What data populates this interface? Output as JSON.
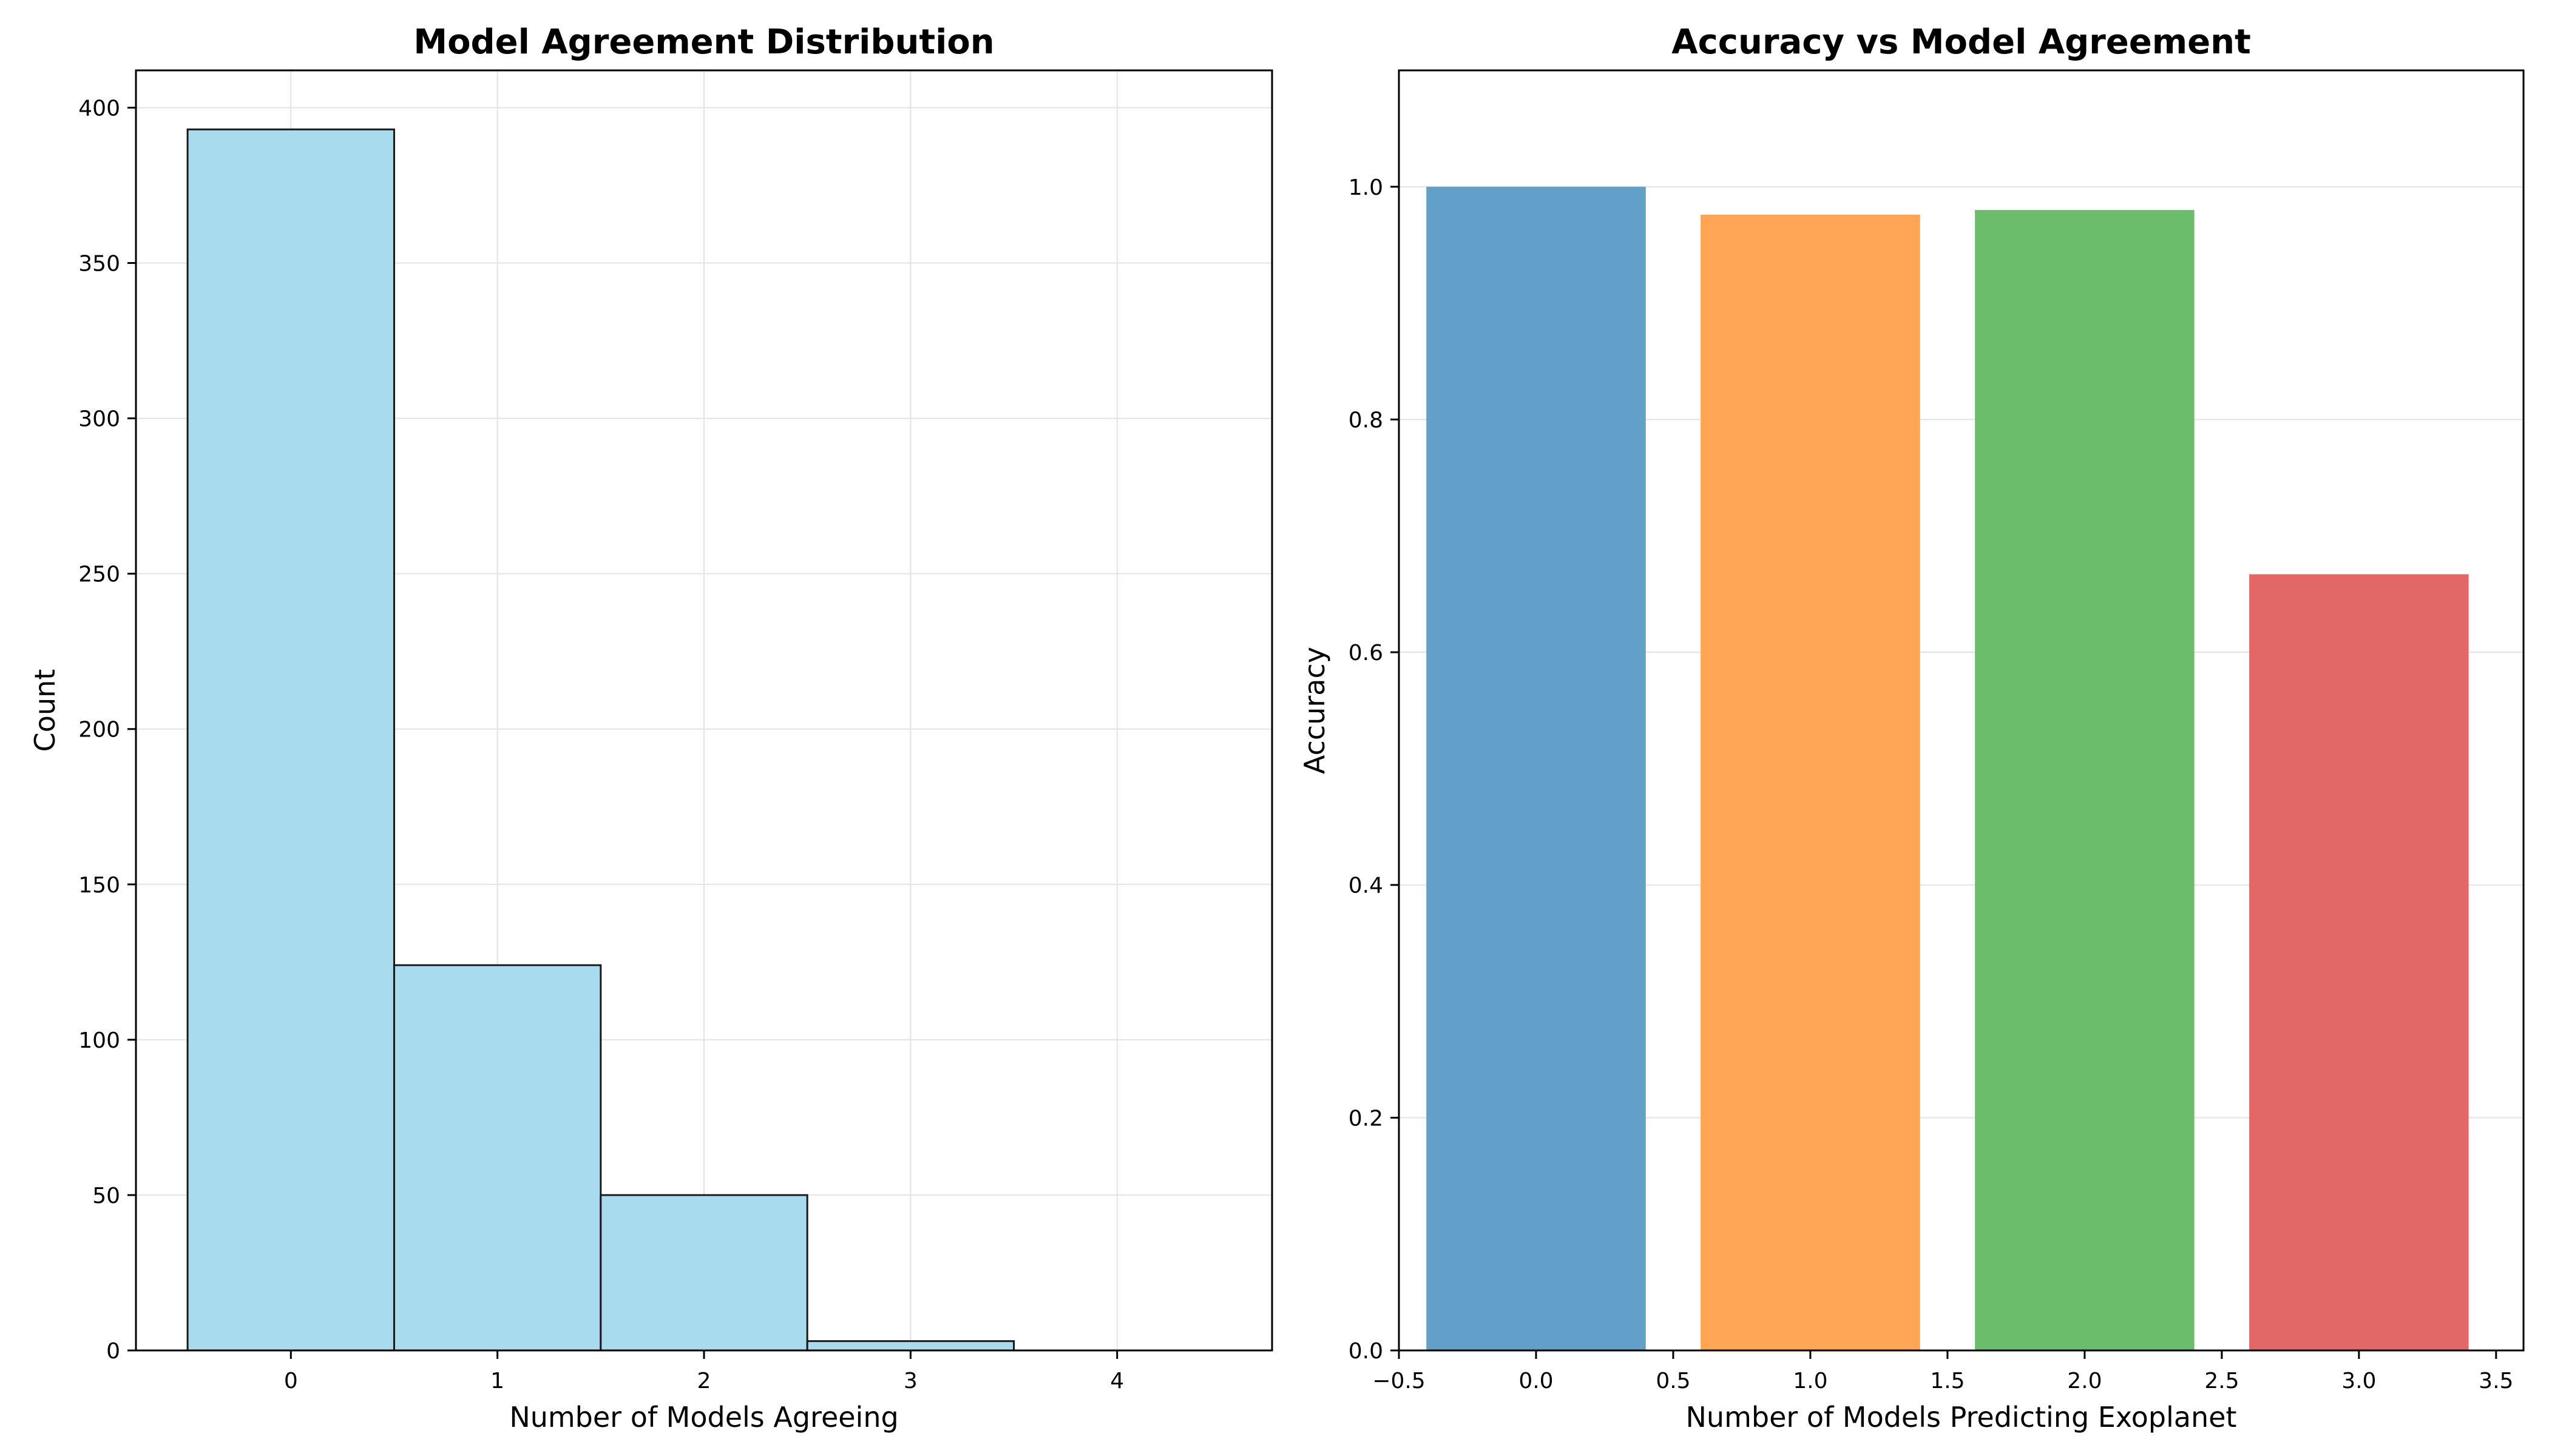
{
  "chart_data": [
    {
      "type": "bar",
      "title": "Model Agreement Distribution",
      "xlabel": "Number of Models Agreeing",
      "ylabel": "Count",
      "categories": [
        0,
        1,
        2,
        3,
        4
      ],
      "values": [
        393,
        124,
        50,
        3,
        0
      ],
      "xlim": [
        -0.75,
        4.75
      ],
      "ylim": [
        0,
        412
      ],
      "xticks": [
        0,
        1,
        2,
        3,
        4
      ],
      "xtick_labels": [
        "0",
        "1",
        "2",
        "3",
        "4"
      ],
      "yticks": [
        0,
        50,
        100,
        150,
        200,
        250,
        300,
        350,
        400
      ],
      "ytick_labels": [
        "0",
        "50",
        "100",
        "150",
        "200",
        "250",
        "300",
        "350",
        "400"
      ],
      "grid": true,
      "colors": {
        "fill": "#a8dbee",
        "edge": "#1a1a1a"
      }
    },
    {
      "type": "bar",
      "title": "Accuracy vs Model Agreement",
      "xlabel": "Number of Models Predicting Exoplanet",
      "ylabel": "Accuracy",
      "categories": [
        0,
        1,
        2,
        3
      ],
      "values": [
        1.0,
        0.976,
        0.98,
        0.667
      ],
      "xlim": [
        -0.5,
        3.6
      ],
      "ylim": [
        0,
        1.1
      ],
      "xticks": [
        -0.5,
        0.0,
        0.5,
        1.0,
        1.5,
        2.0,
        2.5,
        3.0,
        3.5
      ],
      "xtick_labels": [
        "−0.5",
        "0.0",
        "0.5",
        "1.0",
        "1.5",
        "2.0",
        "2.5",
        "3.0",
        "3.5"
      ],
      "yticks": [
        0.0,
        0.2,
        0.4,
        0.6,
        0.8,
        1.0
      ],
      "ytick_labels": [
        "0.0",
        "0.2",
        "0.4",
        "0.6",
        "0.8",
        "1.0"
      ],
      "grid": true,
      "colors": [
        "#62a0ca",
        "#ffa556",
        "#6bbc6b",
        "#e26868"
      ]
    }
  ]
}
